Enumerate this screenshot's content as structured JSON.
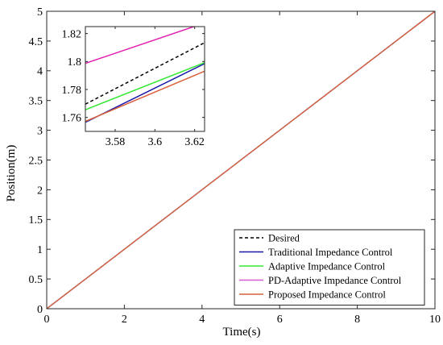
{
  "chart_data": [
    {
      "type": "line",
      "title": "",
      "xlabel": "Time(s)",
      "ylabel": "Position(m)",
      "xlim": [
        0,
        10
      ],
      "ylim": [
        0,
        5
      ],
      "xticks": [
        "0",
        "2",
        "4",
        "6",
        "8",
        "10"
      ],
      "yticks": [
        "0",
        "0.5",
        "1",
        "1.5",
        "2",
        "2.5",
        "3",
        "3.5",
        "4",
        "4.5",
        "5"
      ],
      "grid": false,
      "legend_position": "bottom-right",
      "series": [
        {
          "name": "Desired",
          "color": "#000000",
          "dash": "dashed",
          "x": [
            0,
            10
          ],
          "y": [
            0,
            5
          ]
        },
        {
          "name": "Traditional Impedance Control",
          "color": "#1a1aa6",
          "dash": "solid",
          "x": [
            0,
            10
          ],
          "y": [
            0,
            5
          ]
        },
        {
          "name": "Adaptive Impedance Control",
          "color": "#33e833",
          "dash": "solid",
          "x": [
            0,
            10
          ],
          "y": [
            0,
            5
          ]
        },
        {
          "name": "PD-Adaptive Impedance Control",
          "color": "#d65cd6",
          "dash": "solid",
          "x": [
            0,
            10
          ],
          "y": [
            0,
            5
          ]
        },
        {
          "name": "Proposed Impedance Control",
          "color": "#d9603b",
          "dash": "solid",
          "x": [
            0,
            10
          ],
          "y": [
            0,
            5
          ]
        }
      ]
    },
    {
      "type": "line",
      "title": "",
      "xlabel": "",
      "ylabel": "",
      "xlim": [
        3.565,
        3.625
      ],
      "ylim": [
        1.75,
        1.825
      ],
      "xticks": [
        "3.58",
        "3.6",
        "3.62"
      ],
      "yticks": [
        "1.76",
        "1.78",
        "1.8",
        "1.82"
      ],
      "grid": false,
      "series": [
        {
          "name": "Desired",
          "color": "#000000",
          "dash": "dashed",
          "x": [
            3.565,
            3.625
          ],
          "y": [
            1.7695,
            1.8135
          ]
        },
        {
          "name": "Traditional Impedance Control",
          "color": "#1a1aa6",
          "dash": "solid",
          "x": [
            3.565,
            3.625
          ],
          "y": [
            1.7565,
            1.7985
          ]
        },
        {
          "name": "Adaptive Impedance Control",
          "color": "#33e833",
          "dash": "solid",
          "x": [
            3.565,
            3.625
          ],
          "y": [
            1.7655,
            1.7992
          ]
        },
        {
          "name": "PD-Adaptive Impedance Control",
          "color": "#e01fb0",
          "dash": "solid",
          "x": [
            3.565,
            3.625
          ],
          "y": [
            1.7987,
            1.8276
          ]
        },
        {
          "name": "Proposed Impedance Control",
          "color": "#d9603b",
          "dash": "solid",
          "x": [
            3.565,
            3.625
          ],
          "y": [
            1.7572,
            1.7931
          ]
        }
      ]
    }
  ]
}
